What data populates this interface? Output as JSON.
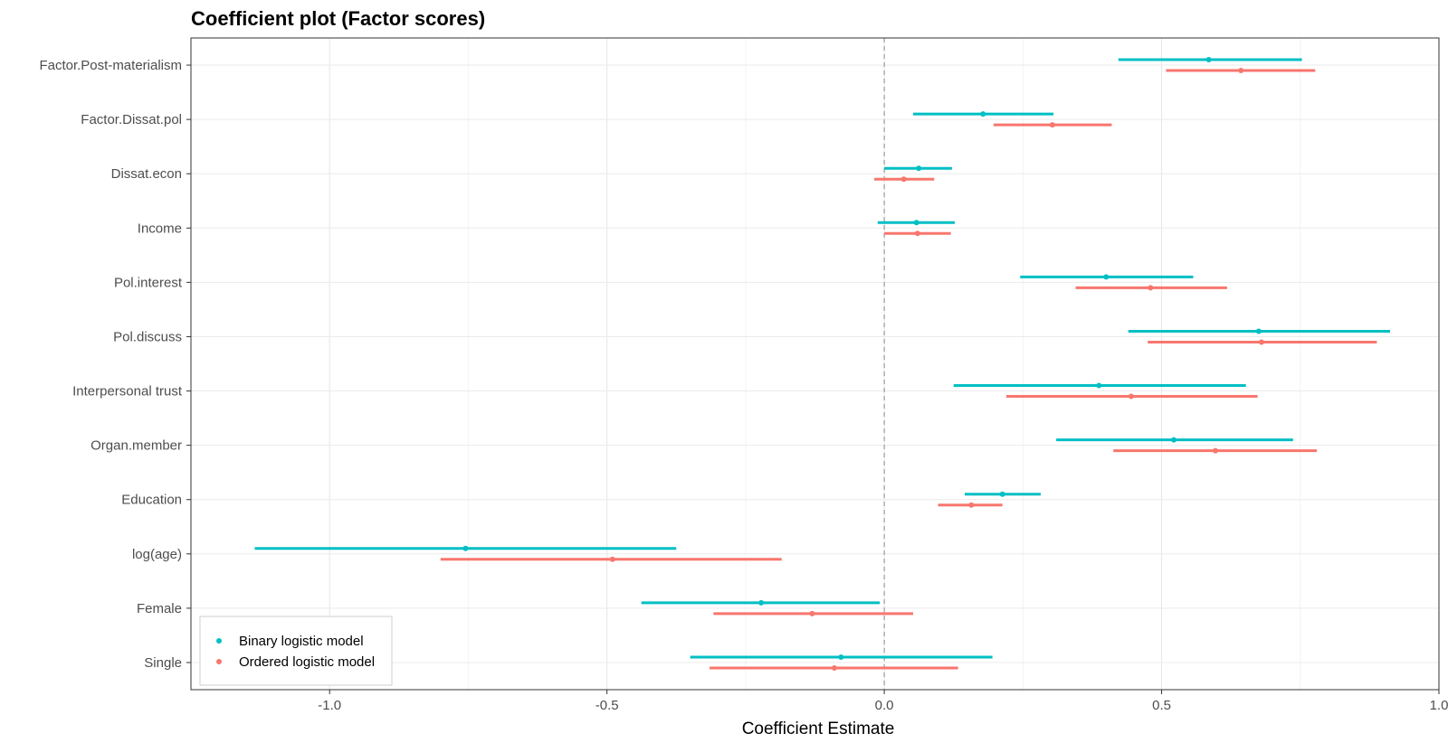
{
  "chart_data": {
    "type": "coefficient_plot",
    "title": "Coefficient plot (Factor scores)",
    "xlabel": "Coefficient Estimate",
    "ylabel": "",
    "xlim": [
      -1.25,
      1.0
    ],
    "x_ticks": [
      -1.0,
      -0.5,
      0.0,
      0.5,
      1.0
    ],
    "x_tick_labels": [
      "-1.0",
      "-0.5",
      "0.0",
      "0.5",
      "1.0"
    ],
    "reference_line": 0.0,
    "grid": true,
    "legend_position": "bottom-left",
    "categories": [
      "Factor.Post-materialism",
      "Factor.Dissat.pol",
      "Dissat.econ",
      "Income",
      "Pol.interest",
      "Pol.discuss",
      "Interpersonal trust",
      "Organ.member",
      "Education",
      "log(age)",
      "Female",
      "Single"
    ],
    "series": [
      {
        "name": "Binary logistic model",
        "color": "#00BFC4",
        "estimates": [
          0.585,
          0.178,
          0.062,
          0.058,
          0.4,
          0.675,
          0.387,
          0.522,
          0.213,
          -0.755,
          -0.222,
          -0.078
        ],
        "lower": [
          0.422,
          0.052,
          0.0,
          -0.012,
          0.245,
          0.44,
          0.125,
          0.31,
          0.145,
          -1.135,
          -0.438,
          -0.35
        ],
        "upper": [
          0.753,
          0.305,
          0.122,
          0.127,
          0.557,
          0.912,
          0.652,
          0.737,
          0.282,
          -0.375,
          -0.008,
          0.195
        ]
      },
      {
        "name": "Ordered logistic model",
        "color": "#F8766D",
        "estimates": [
          0.643,
          0.303,
          0.035,
          0.06,
          0.48,
          0.68,
          0.445,
          0.597,
          0.157,
          -0.49,
          -0.13,
          -0.09
        ],
        "lower": [
          0.508,
          0.197,
          -0.018,
          0.0,
          0.345,
          0.475,
          0.22,
          0.413,
          0.097,
          -0.8,
          -0.308,
          -0.315
        ],
        "upper": [
          0.777,
          0.41,
          0.09,
          0.12,
          0.618,
          0.888,
          0.673,
          0.78,
          0.213,
          -0.185,
          0.052,
          0.133
        ]
      }
    ]
  }
}
